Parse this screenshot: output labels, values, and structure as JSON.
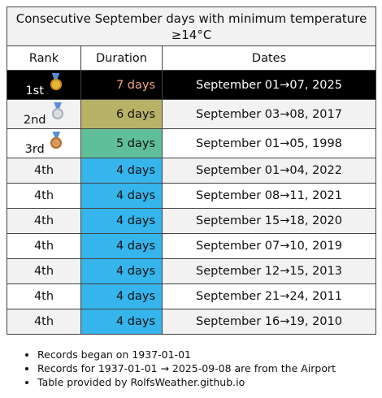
{
  "table": {
    "title": "Consecutive September days with minimum temperature ≥14°C",
    "headers": {
      "rank": "Rank",
      "duration": "Duration",
      "dates": "Dates"
    },
    "rows": [
      {
        "rank": "1st",
        "medal": "gold-medal-icon",
        "duration": "7 days",
        "dates": "September 01→07, 2025",
        "duration_color": "#000000",
        "duration_text_color": "#f4a582"
      },
      {
        "rank": "2nd",
        "medal": "silver-medal-icon",
        "duration": "6 days",
        "dates": "September 03→08, 2017",
        "duration_color": "#b8b266"
      },
      {
        "rank": "3rd",
        "medal": "bronze-medal-icon",
        "duration": "5 days",
        "dates": "September 01→05, 1998",
        "duration_color": "#5fbf9a"
      },
      {
        "rank": "4th",
        "duration": "4 days",
        "dates": "September 01→04, 2022",
        "duration_color": "#35b5ec"
      },
      {
        "rank": "4th",
        "duration": "4 days",
        "dates": "September 08→11, 2021",
        "duration_color": "#35b5ec"
      },
      {
        "rank": "4th",
        "duration": "4 days",
        "dates": "September 15→18, 2020",
        "duration_color": "#35b5ec"
      },
      {
        "rank": "4th",
        "duration": "4 days",
        "dates": "September 07→10, 2019",
        "duration_color": "#35b5ec"
      },
      {
        "rank": "4th",
        "duration": "4 days",
        "dates": "September 12→15, 2013",
        "duration_color": "#35b5ec"
      },
      {
        "rank": "4th",
        "duration": "4 days",
        "dates": "September 21→24, 2011",
        "duration_color": "#35b5ec"
      },
      {
        "rank": "4th",
        "duration": "4 days",
        "dates": "September 16→19, 2010",
        "duration_color": "#35b5ec"
      }
    ]
  },
  "notes": [
    "Records began on 1937-01-01",
    "Records for 1937-01-01 → 2025-09-08 are from the Airport",
    "Table provided by RolfsWeather.github.io"
  ]
}
